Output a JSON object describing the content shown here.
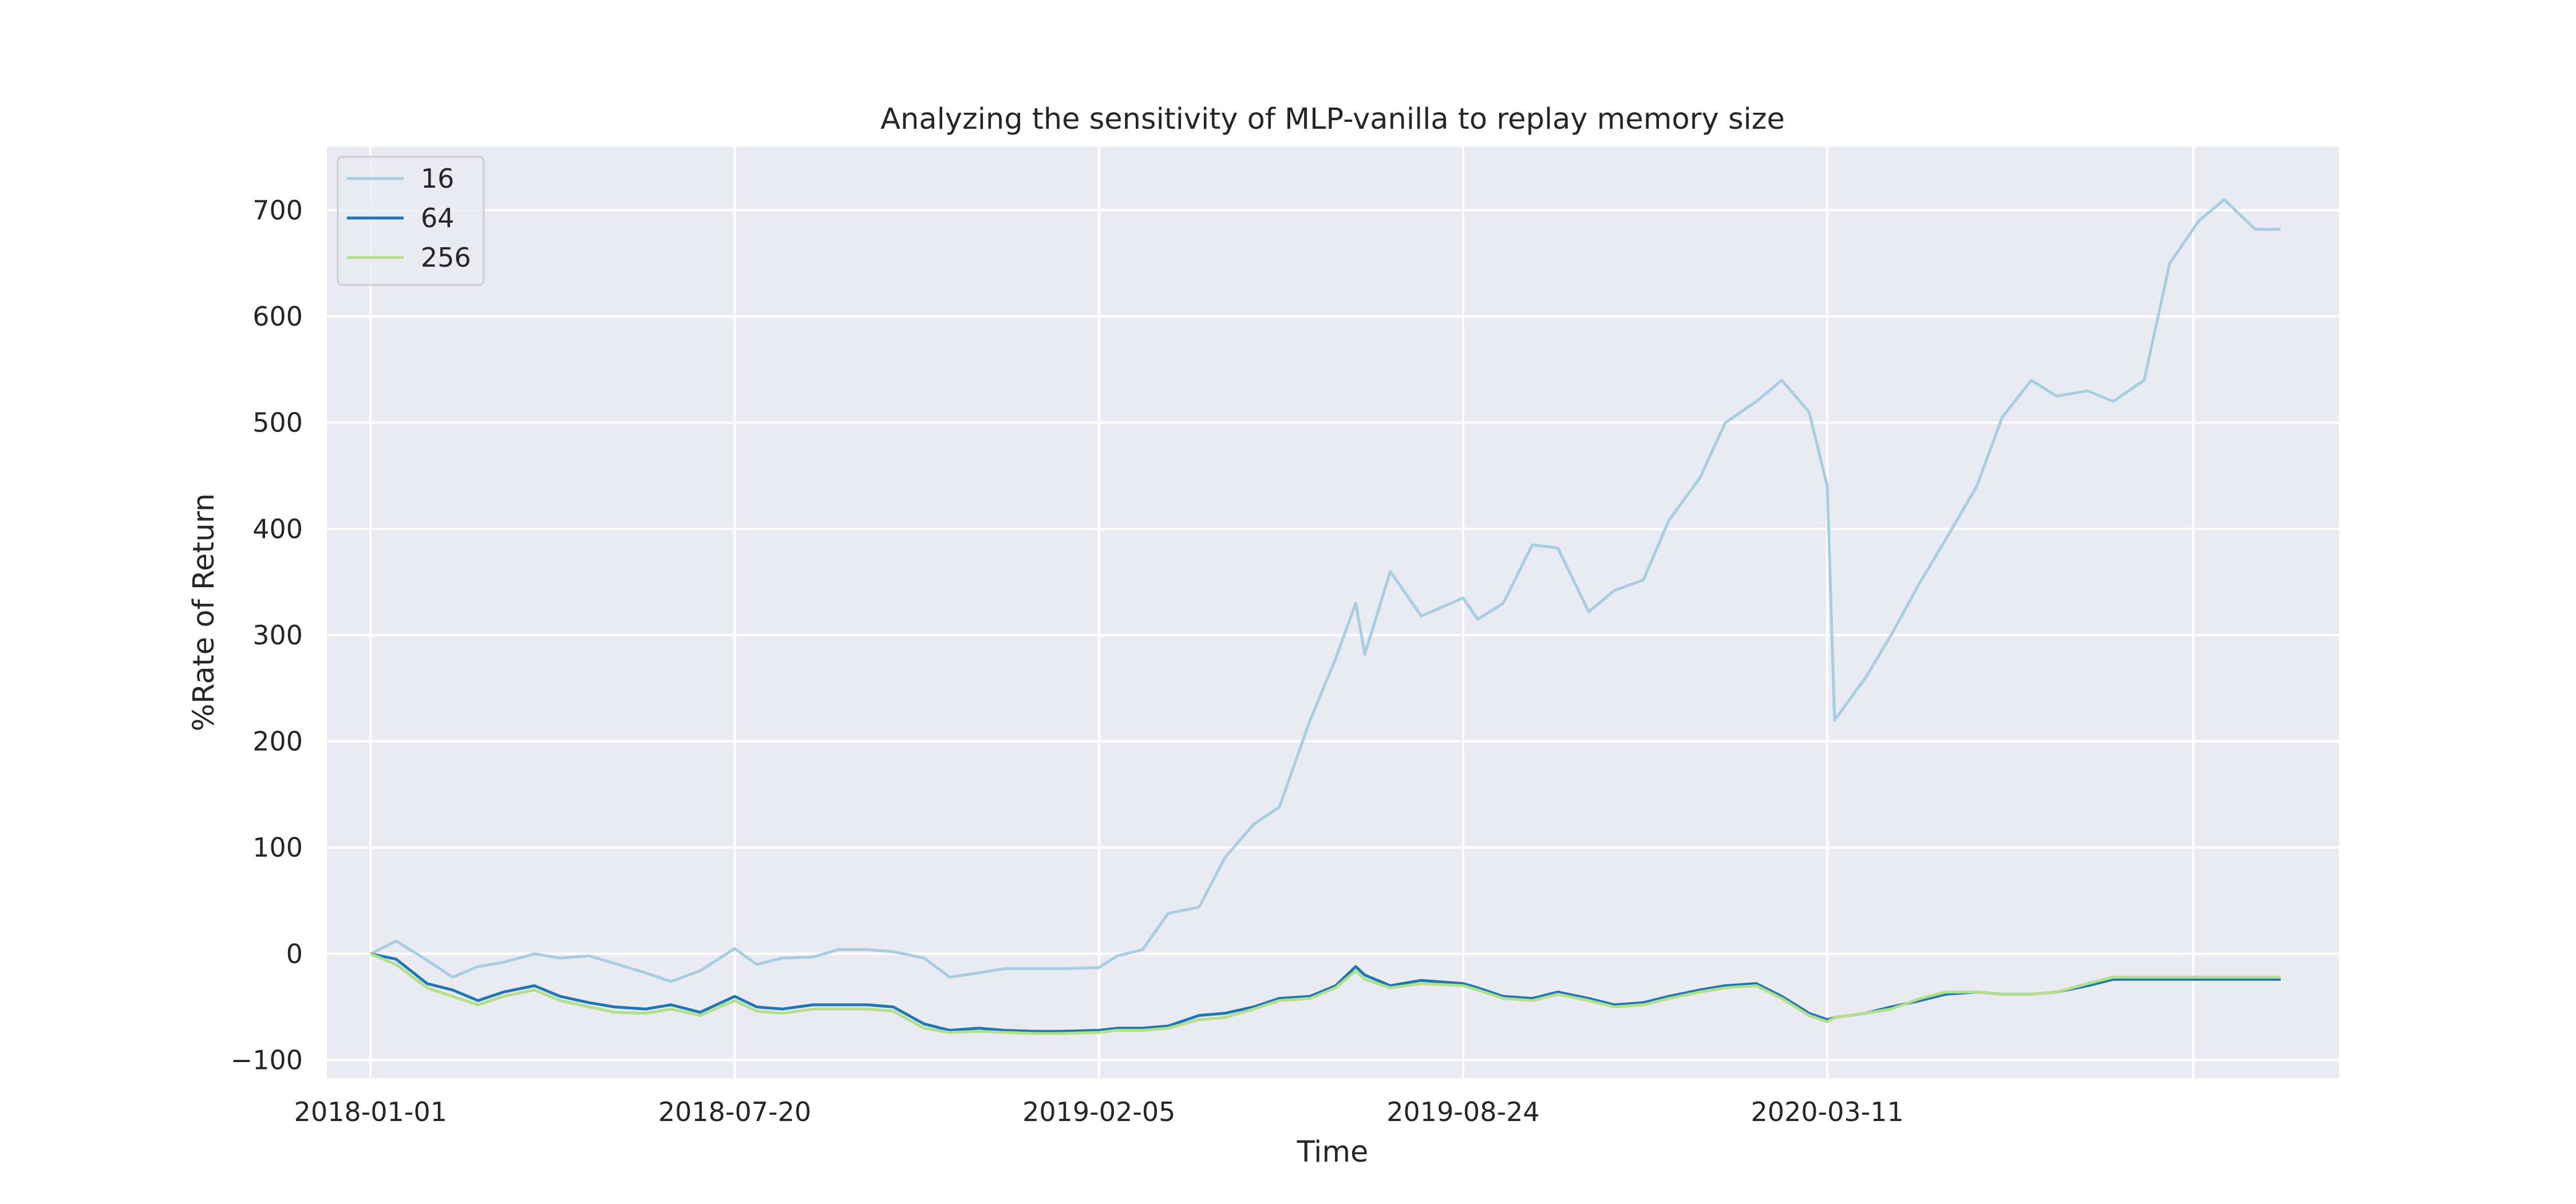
{
  "chart_data": {
    "type": "line",
    "title": "Analyzing the sensitivity of MLP-vanilla to replay memory size",
    "xlabel": "Time",
    "ylabel": "%Rate of Return",
    "x_ticks": [
      "2018-01-01",
      "2018-07-20",
      "2019-02-05",
      "2019-08-24",
      "2020-03-11"
    ],
    "y_ticks": [
      "−100",
      "0",
      "100",
      "200",
      "300",
      "400",
      "500",
      "600",
      "700"
    ],
    "xlim": [
      "2017-12-08",
      "2020-12-17"
    ],
    "ylim": [
      -117,
      760
    ],
    "grid": true,
    "legend_position": "top-left",
    "colors": {
      "background": "#eaeaf2",
      "grid": "#ffffff",
      "series": [
        "#a6cee3",
        "#1f78b4",
        "#b2df8a"
      ]
    },
    "x": [
      "2018-01-01",
      "2018-01-15",
      "2018-02-01",
      "2018-02-15",
      "2018-03-01",
      "2018-03-15",
      "2018-04-01",
      "2018-04-15",
      "2018-05-01",
      "2018-05-15",
      "2018-06-01",
      "2018-06-15",
      "2018-07-01",
      "2018-07-20",
      "2018-08-01",
      "2018-08-15",
      "2018-09-01",
      "2018-09-15",
      "2018-10-01",
      "2018-10-15",
      "2018-11-01",
      "2018-11-15",
      "2018-12-01",
      "2018-12-15",
      "2019-01-01",
      "2019-01-15",
      "2019-02-05",
      "2019-02-15",
      "2019-03-01",
      "2019-03-15",
      "2019-04-01",
      "2019-04-15",
      "2019-05-01",
      "2019-05-15",
      "2019-06-01",
      "2019-06-15",
      "2019-06-26",
      "2019-07-01",
      "2019-07-15",
      "2019-08-01",
      "2019-08-24",
      "2019-09-01",
      "2019-09-15",
      "2019-10-01",
      "2019-10-15",
      "2019-11-01",
      "2019-11-15",
      "2019-12-01",
      "2019-12-15",
      "2020-01-01",
      "2020-01-15",
      "2020-02-01",
      "2020-02-15",
      "2020-03-01",
      "2020-03-11",
      "2020-03-15",
      "2020-04-01",
      "2020-04-15",
      "2020-05-01",
      "2020-05-15",
      "2020-06-01",
      "2020-06-15",
      "2020-07-01",
      "2020-07-15",
      "2020-08-01",
      "2020-08-15",
      "2020-09-01",
      "2020-09-15",
      "2020-10-01",
      "2020-10-15",
      "2020-11-01",
      "2020-11-15",
      "2020-12-01",
      "2020-12-15",
      "2021-01-01",
      "2021-01-15",
      "2021-02-01"
    ],
    "series": [
      {
        "name": "16",
        "x_end": "2020-11-29",
        "values": [
          0,
          12,
          -6,
          -22,
          -12,
          -8,
          0,
          -4,
          -2,
          -9,
          -18,
          -26,
          -16,
          5,
          -10,
          -4,
          -3,
          4,
          4,
          2,
          -4,
          -22,
          -18,
          -14,
          -14,
          -14,
          -13,
          -2,
          4,
          38,
          44,
          90,
          122,
          138,
          220,
          278,
          330,
          282,
          360,
          318,
          335,
          315,
          330,
          385,
          382,
          322,
          342,
          352,
          408,
          448,
          500,
          520,
          540,
          510,
          440,
          220,
          260,
          300,
          350,
          390,
          440,
          505,
          540,
          525,
          530,
          520,
          540,
          650,
          690,
          710,
          682,
          682,
          682,
          682,
          682,
          682,
          682
        ]
      },
      {
        "name": "64",
        "x_end": "2020-11-29",
        "values": [
          0,
          -5,
          -28,
          -34,
          -44,
          -36,
          -30,
          -40,
          -46,
          -50,
          -52,
          -48,
          -55,
          -40,
          -50,
          -52,
          -48,
          -48,
          -48,
          -50,
          -66,
          -72,
          -70,
          -72,
          -73,
          -73,
          -72,
          -70,
          -70,
          -68,
          -58,
          -56,
          -50,
          -42,
          -40,
          -30,
          -12,
          -20,
          -30,
          -25,
          -28,
          -32,
          -40,
          -42,
          -36,
          -42,
          -48,
          -46,
          -40,
          -34,
          -30,
          -28,
          -40,
          -56,
          -62,
          -60,
          -56,
          -50,
          -44,
          -38,
          -36,
          -38,
          -38,
          -36,
          -30,
          -24,
          -24,
          -24,
          -24,
          -24,
          -24,
          -24,
          -24,
          -24,
          -24,
          -24,
          -24
        ]
      },
      {
        "name": "256",
        "x_end": "2020-11-29",
        "values": [
          0,
          -10,
          -32,
          -40,
          -48,
          -40,
          -34,
          -44,
          -50,
          -55,
          -56,
          -52,
          -58,
          -44,
          -54,
          -56,
          -52,
          -52,
          -52,
          -54,
          -70,
          -74,
          -73,
          -74,
          -75,
          -75,
          -74,
          -72,
          -72,
          -70,
          -62,
          -60,
          -52,
          -44,
          -42,
          -32,
          -16,
          -24,
          -32,
          -28,
          -30,
          -34,
          -42,
          -44,
          -38,
          -44,
          -50,
          -48,
          -42,
          -36,
          -32,
          -30,
          -42,
          -58,
          -64,
          -60,
          -56,
          -52,
          -42,
          -36,
          -36,
          -38,
          -38,
          -36,
          -28,
          -22,
          -22,
          -22,
          -22,
          -22,
          -22,
          -22,
          -22,
          -22,
          -22,
          -22,
          -22
        ]
      }
    ]
  }
}
